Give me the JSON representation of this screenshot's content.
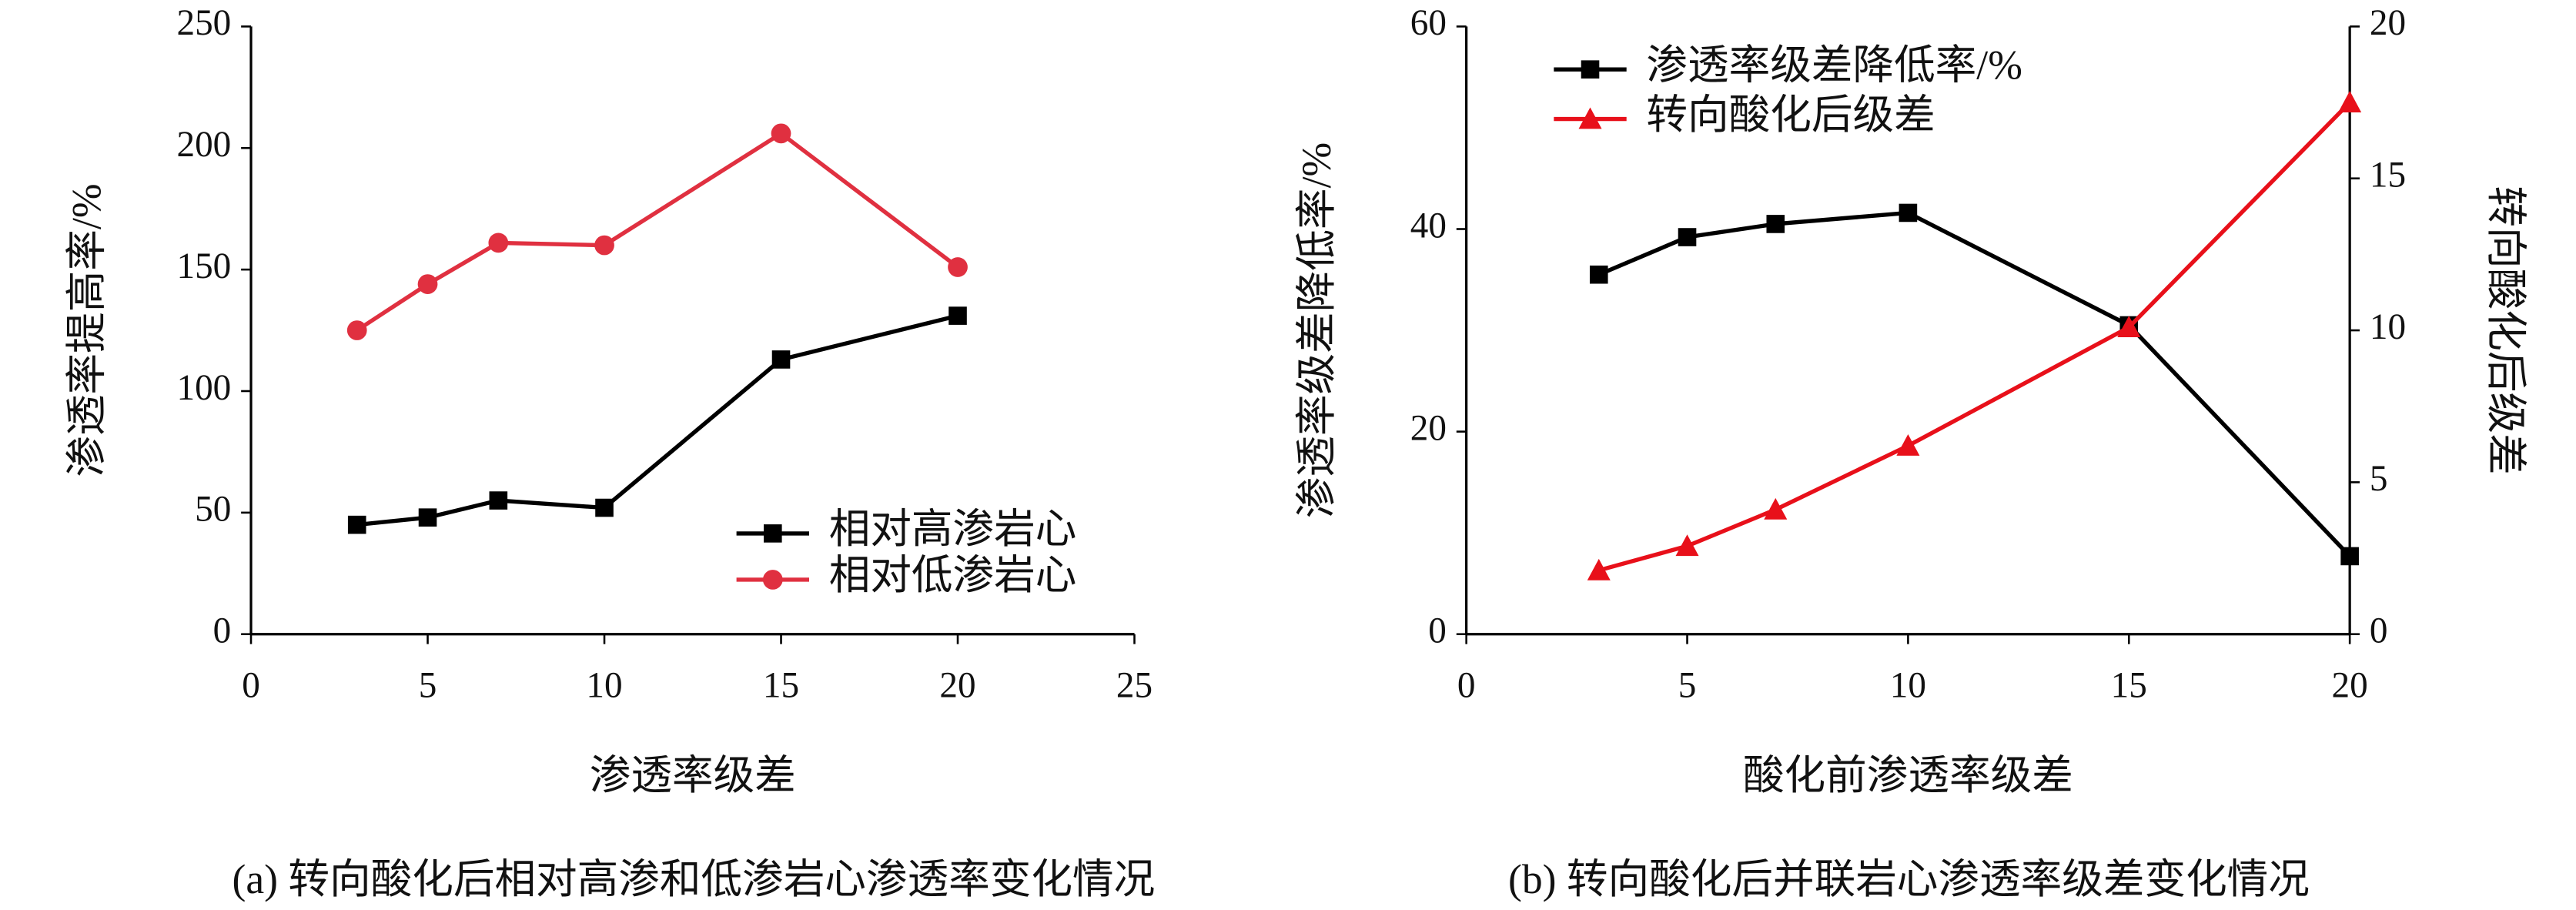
{
  "chart_data": [
    {
      "type": "line",
      "caption": "(a) 转向酸化后相对高渗和低渗岩心渗透率变化情况",
      "x_label": "渗透率级差",
      "y_label": "渗透率提高率/%",
      "x": [
        3,
        5,
        7,
        10,
        15,
        20
      ],
      "series": [
        {
          "name": "相对高渗岩心",
          "color": "#000000",
          "marker": "square",
          "values": [
            45,
            48,
            55,
            52,
            113,
            131
          ]
        },
        {
          "name": "相对低渗岩心",
          "color": "#e03040",
          "marker": "circle",
          "values": [
            125,
            144,
            161,
            160,
            206,
            151
          ]
        }
      ],
      "xlim": [
        0,
        25
      ],
      "xticks": [
        0,
        5,
        10,
        15,
        20,
        25
      ],
      "ylim": [
        0,
        250
      ],
      "yticks": [
        0,
        50,
        100,
        150,
        200,
        250
      ],
      "legend": "lower right"
    },
    {
      "type": "line",
      "caption": "(b) 转向酸化后并联岩心渗透率级差变化情况",
      "x_label": "酸化前渗透率级差",
      "y_label": "渗透率级差降低率/%",
      "y2_label": "转向酸化后级差",
      "x": [
        3,
        5,
        7,
        10,
        15,
        20
      ],
      "series": [
        {
          "name": "渗透率级差降低率/%",
          "color": "#000000",
          "marker": "square",
          "values": [
            35.5,
            39.2,
            40.5,
            41.6,
            30.5,
            7.7
          ]
        },
        {
          "name": "转向酸化后级差",
          "color": "#e8101a",
          "marker": "triangle",
          "axis": "y2",
          "values": [
            2.1,
            2.9,
            4.1,
            6.2,
            10.1,
            17.5
          ]
        }
      ],
      "xlim": [
        0,
        20
      ],
      "xticks": [
        0,
        5,
        10,
        15,
        20
      ],
      "ylim": [
        0,
        60
      ],
      "yticks": [
        0,
        20,
        40,
        60
      ],
      "y2lim": [
        0,
        20
      ],
      "y2ticks": [
        0,
        5,
        10,
        15,
        20
      ],
      "legend": "upper left"
    }
  ]
}
